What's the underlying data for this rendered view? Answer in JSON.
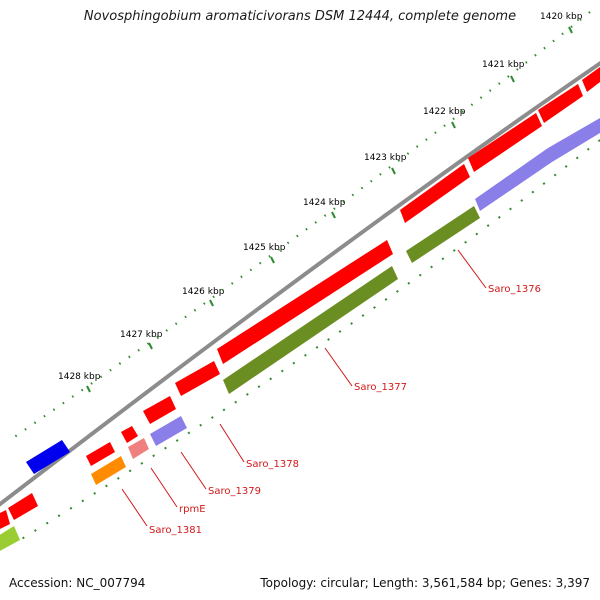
{
  "title": "Novosphingobium aromaticivorans DSM 12444, complete genome",
  "footer": {
    "accession": "Accession: NC_007794",
    "summary": "Topology: circular; Length: 3,561,584 bp; Genes: 3,397"
  },
  "ticks": [
    "1420 kbp",
    "1421 kbp",
    "1422 kbp",
    "1423 kbp",
    "1424 kbp",
    "1425 kbp",
    "1426 kbp",
    "1427 kbp",
    "1428 kbp"
  ],
  "genes": [
    "Saro_1376",
    "Saro_1377",
    "Saro_1378",
    "Saro_1379",
    "rpmE",
    "Saro_1381"
  ],
  "colors": {
    "cds": "#ff0000",
    "backbone": "#8c8c8c",
    "olive": "#6b8e23",
    "blue": "#0000ee",
    "purple": "#8a7fe8",
    "orange": "#ff8c00",
    "pink": "#f08080",
    "lime": "#9acd32",
    "tick": "#2e8b2e",
    "label": "#d11a1a"
  }
}
